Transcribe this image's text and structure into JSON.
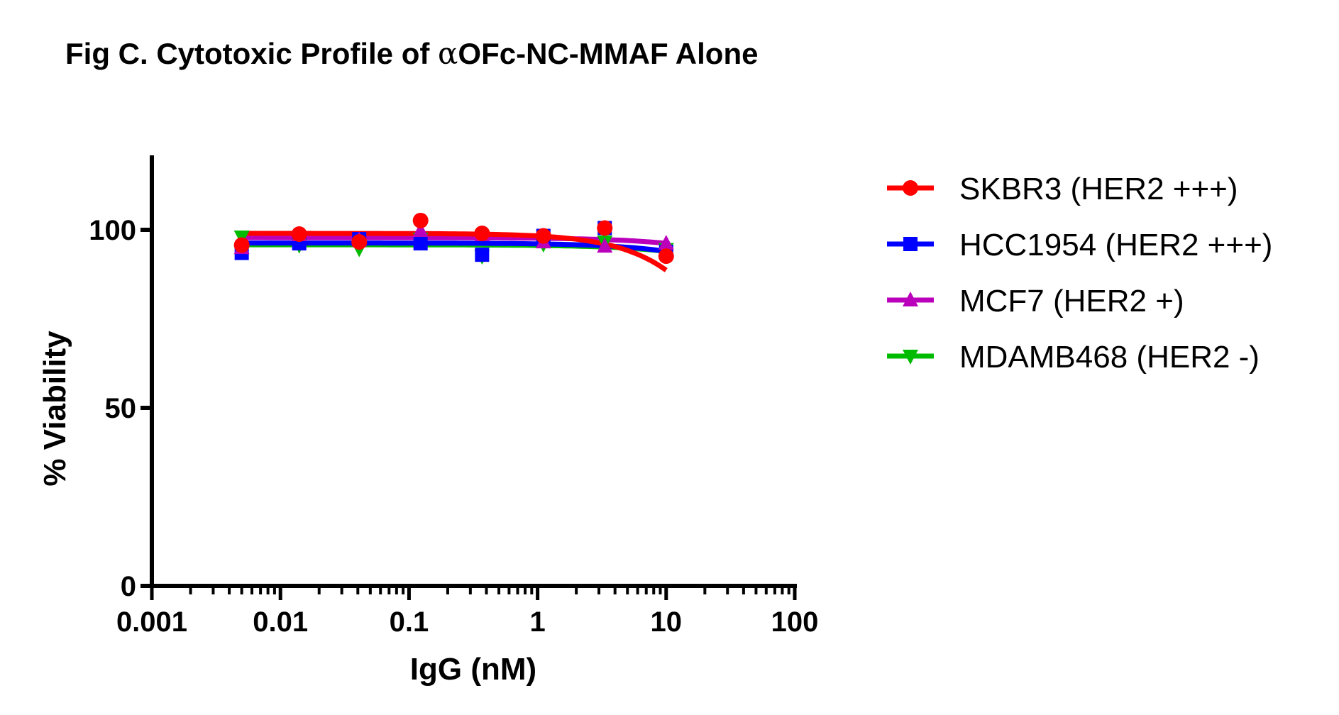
{
  "chart_data": {
    "type": "line",
    "title": "Fig C. Cytotoxic Profile of αOFc-NC-MMAF Alone",
    "title_prefix": "Fig C. Cytotoxic Profile of ",
    "title_alpha": "α",
    "title_suffix": "OFc-NC-MMAF Alone",
    "xlabel": "IgG (nM)",
    "ylabel": "% Viability",
    "xscale": "log",
    "xlim": [
      0.001,
      100
    ],
    "ylim": [
      0,
      120
    ],
    "x_ticks": [
      0.001,
      0.01,
      0.1,
      1,
      10,
      100
    ],
    "x_tick_labels": [
      "0.001",
      "0.01",
      "0.1",
      "1",
      "10",
      "100"
    ],
    "y_ticks": [
      0,
      50,
      100
    ],
    "y_tick_labels": [
      "0",
      "50",
      "100"
    ],
    "grid": false,
    "legend_position": "right",
    "x": [
      0.005,
      0.014,
      0.041,
      0.123,
      0.37,
      1.11,
      3.33,
      10
    ],
    "series": [
      {
        "name": "SKBR3 (HER2 +++)",
        "color": "#ff0000",
        "marker": "circle",
        "values": [
          95.7,
          98.8,
          96.6,
          102.6,
          99.0,
          98.3,
          100.5,
          92.6
        ],
        "fit": {
          "top": 99.0,
          "bottom": 0,
          "ic50": 60,
          "hill": 1.2
        }
      },
      {
        "name": "HCC1954 (HER2 +++)",
        "color": "#0000ff",
        "marker": "square",
        "values": [
          93.5,
          96.2,
          97.4,
          96.2,
          93.0,
          98.3,
          100.5,
          93.8
        ],
        "fit": {
          "top": 96.3,
          "bottom": 0,
          "ic50": 400,
          "hill": 1.0
        }
      },
      {
        "name": "MCF7 (HER2 +)",
        "color": "#bb00bb",
        "marker": "triangle-up",
        "values": [
          95.0,
          98.6,
          97.1,
          99.8,
          98.6,
          96.6,
          95.4,
          96.2
        ],
        "fit": {
          "top": 97.8,
          "bottom": 0,
          "ic50": 600,
          "hill": 1.0
        }
      },
      {
        "name": "MDAMB468 (HER2 -)",
        "color": "#00bb00",
        "marker": "triangle-down",
        "values": [
          98.0,
          95.7,
          94.7,
          97.4,
          92.6,
          96.0,
          96.6,
          94.5
        ],
        "fit": {
          "top": 95.8,
          "bottom": 0,
          "ic50": 500,
          "hill": 1.0
        }
      }
    ]
  }
}
